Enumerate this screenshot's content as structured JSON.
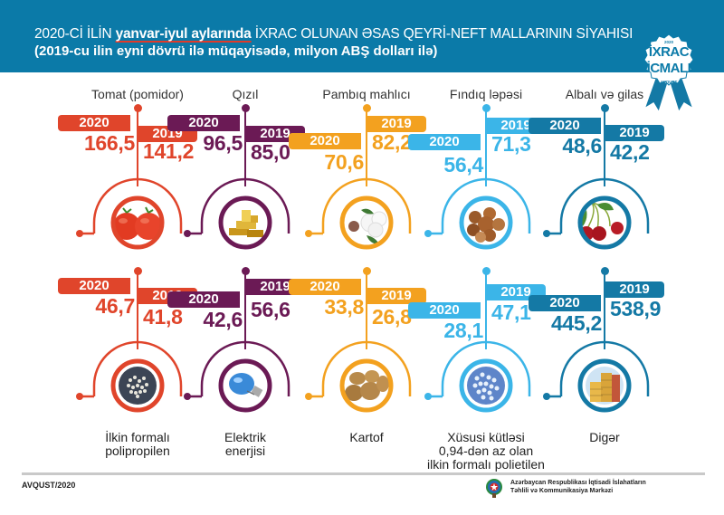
{
  "header": {
    "title_prefix": "2020-Cİ İLİN ",
    "title_highlight": "yanvar-iyul aylarında",
    "title_suffix": " İXRAC OLUNAN ƏSAS QEYRİ-NEFT MALLARININ SİYAHISI",
    "subtitle": "(2019-cu ilin eyni dövrü ilə müqayisədə, milyon ABŞ dolları ilə)"
  },
  "badge": {
    "year": "2020",
    "line1": "İXRAC",
    "line2": "İCMALI",
    "month": "AVQUST"
  },
  "year_labels": {
    "current": "2020",
    "previous": "2019"
  },
  "items_top": [
    {
      "name": "Tomat (pomidor)",
      "v2020": "166,5",
      "v2019": "141,2",
      "color": "#e0452b",
      "icon": "tomato-icon"
    },
    {
      "name": "Qızıl",
      "v2020": "96,5",
      "v2019": "85,0",
      "color": "#6b1a55",
      "icon": "gold-bars-icon"
    },
    {
      "name": "Pambıq mahlıcı",
      "v2020": "70,6",
      "v2019": "82,2",
      "color": "#f3a11f",
      "icon": "cotton-icon"
    },
    {
      "name": "Fındıq ləpəsi",
      "v2020": "56,4",
      "v2019": "71,3",
      "color": "#3bb5e8",
      "icon": "hazelnut-icon"
    },
    {
      "name": "Albalı və gilas",
      "v2020": "48,6",
      "v2019": "42,2",
      "color": "#1479a5",
      "icon": "cherry-icon"
    }
  ],
  "items_bottom": [
    {
      "name": "İlkin formalı polipropilen",
      "name_l1": "İlkin formalı",
      "name_l2": "polipropilen",
      "name_l3": "",
      "v2020": "46,7",
      "v2019": "41,8",
      "color": "#e0452b",
      "icon": "polypropylene-granules-icon"
    },
    {
      "name": "Elektrik enerjisi",
      "name_l1": "Elektrik",
      "name_l2": "enerjisi",
      "name_l3": "",
      "v2020": "42,6",
      "v2019": "56,6",
      "color": "#6b1a55",
      "icon": "light-bulb-icon"
    },
    {
      "name": "Kartof",
      "name_l1": "Kartof",
      "name_l2": "",
      "name_l3": "",
      "v2020": "33,8",
      "v2019": "26,8",
      "color": "#f3a11f",
      "icon": "potato-icon"
    },
    {
      "name": "Xüsusi kütləsi 0,94-dən az olan ilkin formalı polietilen",
      "name_l1": "Xüsusi kütləsi",
      "name_l2": "0,94-dən az olan",
      "name_l3": "ilkin formalı polietilen",
      "v2020": "28,1",
      "v2019": "47,1",
      "color": "#3bb5e8",
      "icon": "polyethylene-granules-icon"
    },
    {
      "name": "Digər",
      "name_l1": "Digər",
      "name_l2": "",
      "name_l3": "",
      "v2020": "445,2",
      "v2019": "538,9",
      "color": "#1479a5",
      "icon": "containers-icon"
    }
  ],
  "footer": {
    "date": "AVQUST/2020",
    "org_line1": "Azərbaycan Respublikası İqtisadi İslahatların",
    "org_line2": "Təhlili və Kommunikasiya Mərkəzi"
  }
}
